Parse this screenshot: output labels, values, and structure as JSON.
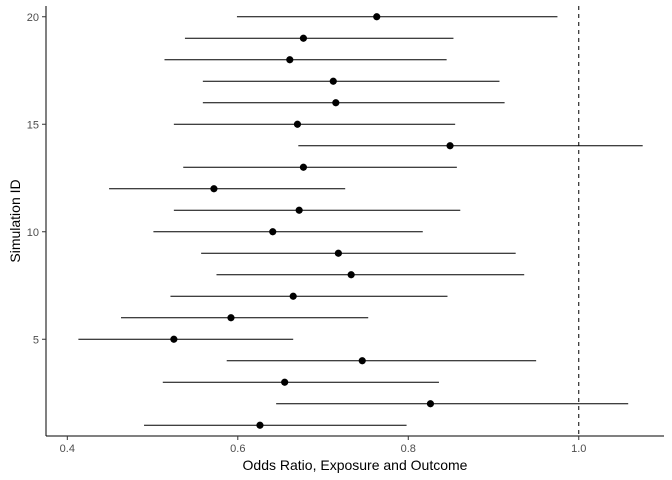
{
  "chart_data": {
    "type": "scatter",
    "subtype": "forest-plot",
    "title": "",
    "xlabel": "Odds Ratio, Exposure and Outcome",
    "ylabel": "Simulation ID",
    "xlim": [
      0.375,
      1.1
    ],
    "ylim": [
      0.5,
      20.5
    ],
    "x_ticks": [
      0.4,
      0.6,
      0.8,
      1.0
    ],
    "x_tick_labels": [
      "0.4",
      "0.6",
      "0.8",
      "1.0"
    ],
    "y_ticks": [
      5,
      10,
      15,
      20
    ],
    "y_tick_labels": [
      "5",
      "10",
      "15",
      "20"
    ],
    "grid": false,
    "reference_line": {
      "x": 1.0,
      "style": "dashed"
    },
    "points": [
      {
        "id": 1,
        "or": 0.626,
        "lower": 0.49,
        "upper": 0.798
      },
      {
        "id": 2,
        "or": 0.826,
        "lower": 0.645,
        "upper": 1.058
      },
      {
        "id": 3,
        "or": 0.655,
        "lower": 0.512,
        "upper": 0.836
      },
      {
        "id": 4,
        "or": 0.746,
        "lower": 0.587,
        "upper": 0.95
      },
      {
        "id": 5,
        "or": 0.525,
        "lower": 0.413,
        "upper": 0.665
      },
      {
        "id": 6,
        "or": 0.592,
        "lower": 0.463,
        "upper": 0.753
      },
      {
        "id": 7,
        "or": 0.665,
        "lower": 0.521,
        "upper": 0.846
      },
      {
        "id": 8,
        "or": 0.733,
        "lower": 0.575,
        "upper": 0.936
      },
      {
        "id": 9,
        "or": 0.718,
        "lower": 0.557,
        "upper": 0.926
      },
      {
        "id": 10,
        "or": 0.641,
        "lower": 0.501,
        "upper": 0.817
      },
      {
        "id": 11,
        "or": 0.672,
        "lower": 0.525,
        "upper": 0.861
      },
      {
        "id": 12,
        "or": 0.572,
        "lower": 0.449,
        "upper": 0.726
      },
      {
        "id": 13,
        "or": 0.677,
        "lower": 0.536,
        "upper": 0.857
      },
      {
        "id": 14,
        "or": 0.849,
        "lower": 0.671,
        "upper": 1.075
      },
      {
        "id": 15,
        "or": 0.67,
        "lower": 0.525,
        "upper": 0.855
      },
      {
        "id": 16,
        "or": 0.715,
        "lower": 0.559,
        "upper": 0.913
      },
      {
        "id": 17,
        "or": 0.712,
        "lower": 0.559,
        "upper": 0.907
      },
      {
        "id": 18,
        "or": 0.661,
        "lower": 0.514,
        "upper": 0.845
      },
      {
        "id": 19,
        "or": 0.677,
        "lower": 0.538,
        "upper": 0.853
      },
      {
        "id": 20,
        "or": 0.763,
        "lower": 0.599,
        "upper": 0.975
      }
    ]
  }
}
